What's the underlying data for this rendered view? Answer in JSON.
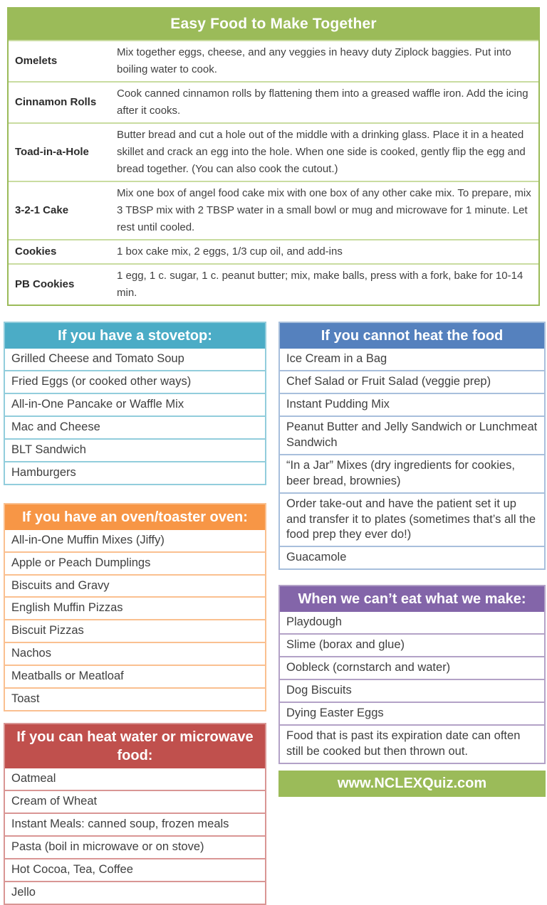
{
  "theme": {
    "green": "#9BBB59",
    "green_light": "#C9DCA0",
    "teal": "#4BACC6",
    "teal_light": "#92CDDC",
    "orange": "#F79646",
    "orange_light": "#FAC090",
    "red": "#C0504D",
    "red_light": "#D99694",
    "blue": "#5581BE",
    "blue_light": "#A8BFDC",
    "purple": "#8365A9",
    "purple_light": "#B3A2C7",
    "text": "#404040"
  },
  "main_table": {
    "title": "Easy Food to Make Together",
    "rows": [
      {
        "label": "Omelets",
        "text": "Mix together eggs, cheese, and any veggies in heavy duty Ziplock baggies.  Put into boiling water to cook."
      },
      {
        "label": "Cinnamon Rolls",
        "text": "Cook canned cinnamon rolls by flattening them into a greased waffle iron.  Add the icing after it cooks."
      },
      {
        "label": "Toad-in-a-Hole",
        "text": "Butter bread and cut a hole out of the middle with a drinking glass.  Place it in a heated skillet and crack an egg into the hole.  When one side is cooked, gently flip the egg and bread together.  (You can also cook the cutout.)"
      },
      {
        "label": "3-2-1 Cake",
        "text": "Mix one box of angel food cake mix with one box of any other cake mix.  To prepare, mix 3 TBSP mix with 2 TBSP water in a small bowl or mug and microwave for 1 minute.  Let rest until cooled."
      },
      {
        "label": "Cookies",
        "text": "1 box cake mix, 2 eggs, 1/3 cup oil, and add-ins"
      },
      {
        "label": "PB Cookies",
        "text": "1 egg, 1 c. sugar, 1 c. peanut butter; mix, make balls, press with a fork, bake for 10-14 min."
      }
    ]
  },
  "sections": {
    "stovetop": {
      "title": "If you have a stovetop:",
      "items": [
        "Grilled Cheese and Tomato Soup",
        "Fried Eggs (or cooked other ways)",
        "All-in-One Pancake or Waffle Mix",
        "Mac and Cheese",
        "BLT Sandwich",
        "Hamburgers"
      ]
    },
    "oven": {
      "title": "If you have an oven/toaster oven:",
      "items": [
        "All-in-One Muffin Mixes (Jiffy)",
        "Apple or Peach Dumplings",
        "Biscuits and Gravy",
        "English Muffin Pizzas",
        "Biscuit Pizzas",
        "Nachos",
        "Meatballs or Meatloaf",
        "Toast"
      ]
    },
    "heat_water": {
      "title": "If you can heat water or microwave food:",
      "items": [
        "Oatmeal",
        "Cream of Wheat",
        "Instant Meals: canned soup, frozen meals",
        "Pasta (boil in microwave or on stove)",
        "Hot Cocoa, Tea, Coffee",
        "Jello"
      ]
    },
    "no_heat": {
      "title": "If you cannot heat the food",
      "items": [
        "Ice Cream in a Bag",
        "Chef Salad or Fruit Salad (veggie prep)",
        "Instant Pudding Mix",
        "Peanut Butter and Jelly Sandwich or Lunchmeat Sandwich",
        "“In a Jar” Mixes (dry ingredients for cookies, beer bread, brownies)",
        "Order take-out and have the patient set it up and transfer it to plates (sometimes that’s all the food prep they ever do!)",
        "Guacamole"
      ]
    },
    "cannot_eat": {
      "title": "When we can’t eat what we make:",
      "items": [
        "Playdough",
        "Slime (borax and glue)",
        "Oobleck (cornstarch and water)",
        "Dog Biscuits",
        "Dying Easter Eggs",
        "Food that is past its expiration date can often still be cooked but then thrown out."
      ]
    }
  },
  "footer": {
    "url": "www.NCLEXQuiz.com"
  }
}
